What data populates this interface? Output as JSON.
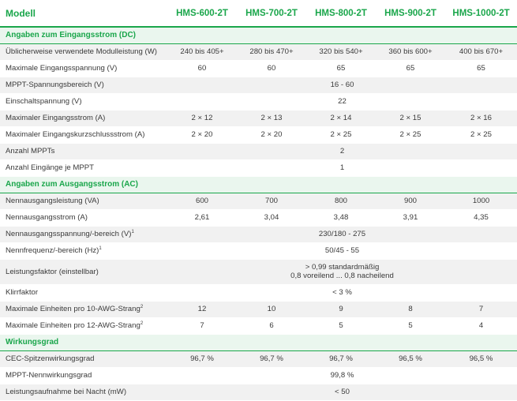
{
  "header": {
    "label": "Modell",
    "models": [
      "HMS-600-2T",
      "HMS-700-2T",
      "HMS-800-2T",
      "HMS-900-2T",
      "HMS-1000-2T"
    ]
  },
  "sections": {
    "dc": {
      "title": "Angaben zum Eingangsstrom (DC)",
      "rows": {
        "module_power": {
          "label": "Üblicherweise verwendete Modulleistung (W)",
          "values": [
            "240 bis 405+",
            "280 bis 470+",
            "320 bis 540+",
            "360 bis 600+",
            "400 bis 670+"
          ]
        },
        "max_input_voltage": {
          "label": "Maximale Eingangsspannung (V)",
          "values": [
            "60",
            "60",
            "65",
            "65",
            "65"
          ]
        },
        "mppt_range": {
          "label": "MPPT-Spannungsbereich (V)",
          "value": "16 - 60"
        },
        "startup_voltage": {
          "label": "Einschaltspannung (V)",
          "value": "22"
        },
        "max_input_current": {
          "label": "Maximaler Eingangsstrom (A)",
          "values": [
            "2 × 12",
            "2 × 13",
            "2 × 14",
            "2 × 15",
            "2 × 16"
          ]
        },
        "max_short_circuit": {
          "label": "Maximaler Eingangskurzschlussstrom (A)",
          "values": [
            "2 × 20",
            "2 × 20",
            "2 × 25",
            "2 × 25",
            "2 × 25"
          ]
        },
        "mppt_count": {
          "label": "Anzahl MPPTs",
          "value": "2"
        },
        "inputs_per_mppt": {
          "label": "Anzahl Eingänge je MPPT",
          "value": "1"
        }
      }
    },
    "ac": {
      "title": "Angaben zum Ausgangsstrom (AC)",
      "rows": {
        "rated_power": {
          "label": "Nennausgangsleistung (VA)",
          "values": [
            "600",
            "700",
            "800",
            "900",
            "1000"
          ]
        },
        "rated_current": {
          "label": "Nennausgangsstrom (A)",
          "values": [
            "2,61",
            "3,04",
            "3,48",
            "3,91",
            "4,35"
          ]
        },
        "rated_voltage": {
          "label": "Nennausgangsspannung/-bereich (V)",
          "sup": "1",
          "value": "230/180 - 275"
        },
        "rated_frequency": {
          "label": "Nennfrequenz/-bereich (Hz)",
          "sup": "1",
          "value": "50/45 - 55"
        },
        "power_factor": {
          "label": "Leistungsfaktor (einstellbar)",
          "value_line1": "> 0,99 standardmäßig",
          "value_line2": "0,8 voreilend ... 0,8 nacheilend"
        },
        "thd": {
          "label": "Klirrfaktor",
          "value": "< 3 %"
        },
        "units_10awg": {
          "label": "Maximale Einheiten pro 10-AWG-Strang",
          "sup": "2",
          "values": [
            "12",
            "10",
            "9",
            "8",
            "7"
          ]
        },
        "units_12awg": {
          "label": "Maximale Einheiten pro 12-AWG-Strang",
          "sup": "2",
          "values": [
            "7",
            "6",
            "5",
            "5",
            "4"
          ]
        }
      }
    },
    "efficiency": {
      "title": "Wirkungsgrad",
      "rows": {
        "cec_peak": {
          "label": "CEC-Spitzenwirkungsgrad",
          "values": [
            "96,7 %",
            "96,7 %",
            "96,7 %",
            "96,5 %",
            "96,5 %"
          ]
        },
        "mppt_nominal": {
          "label": "MPPT-Nennwirkungsgrad",
          "value": "99,8 %"
        },
        "night_consumption": {
          "label": "Leistungsaufnahme bei Nacht (mW)",
          "value": "< 50"
        }
      }
    }
  },
  "colors": {
    "accent": "#1aa64b",
    "section_bg": "#eaf6ee",
    "stripe": "#f1f1f1",
    "text": "#3a3a3a"
  }
}
